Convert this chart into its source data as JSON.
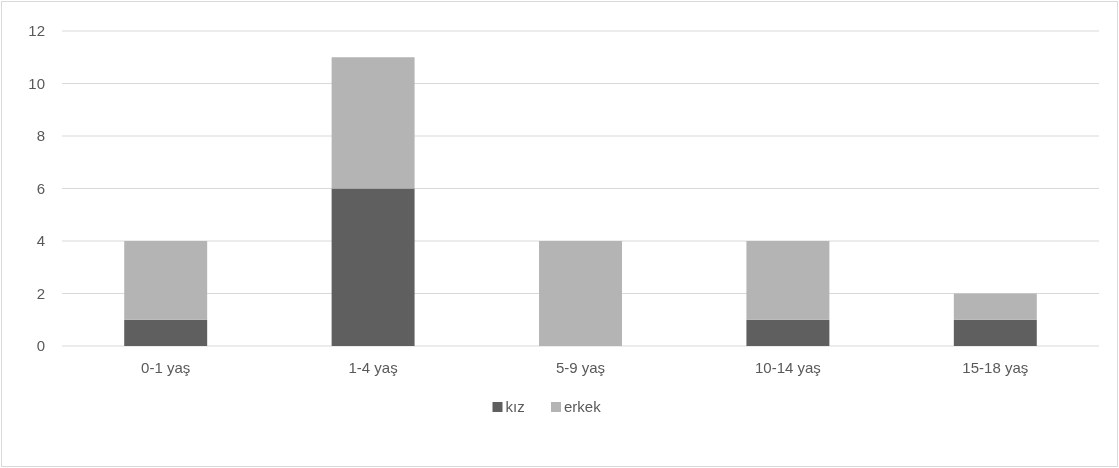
{
  "chart_data": {
    "type": "bar",
    "stacked": true,
    "categories": [
      "0-1 yaş",
      "1-4 yaş",
      "5-9 yaş",
      "10-14 yaş",
      "15-18 yaş"
    ],
    "series": [
      {
        "name": "kız",
        "color": "#5f5f5f",
        "values": [
          1,
          6,
          0,
          1,
          1
        ]
      },
      {
        "name": "erkek",
        "color": "#b4b4b4",
        "values": [
          3,
          5,
          4,
          3,
          1
        ]
      }
    ],
    "ylim": [
      0,
      12
    ],
    "yticks": [
      0,
      2,
      4,
      6,
      8,
      10,
      12
    ],
    "grid": "y",
    "legend": "bottom"
  }
}
